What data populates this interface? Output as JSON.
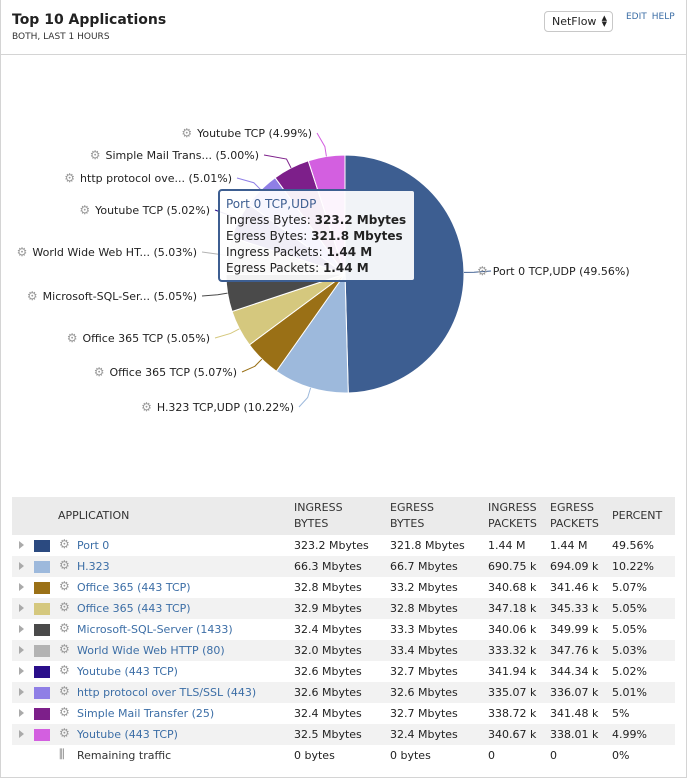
{
  "header": {
    "title": "Top 10 Applications",
    "subtitle": "BOTH, LAST 1 HOURS",
    "source_select": "NetFlow",
    "edit": "EDIT",
    "help": "HELP"
  },
  "chart_data": {
    "type": "pie",
    "slices": [
      {
        "label": "Port 0 TCP,UDP (49.56%)",
        "value": 49.56,
        "color": "#3d5e91"
      },
      {
        "label": "H.323 TCP,UDP (10.22%)",
        "value": 10.22,
        "color": "#9db9dc"
      },
      {
        "label": "Office 365 TCP (5.07%)",
        "value": 5.07,
        "color": "#9a7016"
      },
      {
        "label": "Office 365 TCP (5.05%)",
        "value": 5.05,
        "color": "#d5c87e"
      },
      {
        "label": "Microsoft-SQL-Ser... (5.05%)",
        "value": 5.05,
        "color": "#4a4a4a"
      },
      {
        "label": "World Wide Web HT... (5.03%)",
        "value": 5.03,
        "color": "#b3b3b3"
      },
      {
        "label": "Youtube TCP (5.02%)",
        "value": 5.02,
        "color": "#2a0e8a"
      },
      {
        "label": "http protocol ove... (5.01%)",
        "value": 5.01,
        "color": "#8f7fe6"
      },
      {
        "label": "Simple Mail Trans... (5.00%)",
        "value": 5.0,
        "color": "#7d1f8a"
      },
      {
        "label": "Youtube TCP (4.99%)",
        "value": 4.99,
        "color": "#d35fe0"
      }
    ],
    "tooltip": {
      "title": "Port 0 TCP,UDP",
      "lines": [
        {
          "k": "Ingress Bytes: ",
          "v": "323.2 Mbytes"
        },
        {
          "k": "Egress Bytes: ",
          "v": "321.8 Mbytes"
        },
        {
          "k": "Ingress Packets: ",
          "v": "1.44 M"
        },
        {
          "k": "Egress Packets: ",
          "v": "1.44 M"
        }
      ]
    }
  },
  "table": {
    "columns": [
      "APPLICATION",
      "INGRESS BYTES",
      "EGRESS BYTES",
      "INGRESS PACKETS",
      "EGRESS PACKETS",
      "PERCENT"
    ],
    "rows": [
      {
        "name": "Port 0",
        "color": "#2b4a80",
        "ib": "323.2 Mbytes",
        "eb": "321.8 Mbytes",
        "ip": "1.44 M",
        "ep": "1.44 M",
        "pct": "49.56%"
      },
      {
        "name": "H.323",
        "color": "#9db9dc",
        "ib": "66.3 Mbytes",
        "eb": "66.7 Mbytes",
        "ip": "690.75 k",
        "ep": "694.09 k",
        "pct": "10.22%"
      },
      {
        "name": "Office 365 (443 TCP)",
        "color": "#9a7016",
        "ib": "32.8 Mbytes",
        "eb": "33.2 Mbytes",
        "ip": "340.68 k",
        "ep": "341.46 k",
        "pct": "5.07%"
      },
      {
        "name": "Office 365 (443 TCP)",
        "color": "#d5c87e",
        "ib": "32.9 Mbytes",
        "eb": "32.8 Mbytes",
        "ip": "347.18 k",
        "ep": "345.33 k",
        "pct": "5.05%"
      },
      {
        "name": "Microsoft-SQL-Server (1433)",
        "color": "#4a4a4a",
        "ib": "32.4 Mbytes",
        "eb": "33.3 Mbytes",
        "ip": "340.06 k",
        "ep": "349.99 k",
        "pct": "5.05%"
      },
      {
        "name": "World Wide Web HTTP (80)",
        "color": "#b3b3b3",
        "ib": "32.0 Mbytes",
        "eb": "33.4 Mbytes",
        "ip": "333.32 k",
        "ep": "347.76 k",
        "pct": "5.03%"
      },
      {
        "name": "Youtube (443 TCP)",
        "color": "#2a0e8a",
        "ib": "32.6 Mbytes",
        "eb": "32.7 Mbytes",
        "ip": "341.94 k",
        "ep": "344.34 k",
        "pct": "5.02%"
      },
      {
        "name": "http protocol over TLS/SSL (443)",
        "color": "#8f7fe6",
        "ib": "32.6 Mbytes",
        "eb": "32.6 Mbytes",
        "ip": "335.07 k",
        "ep": "336.07 k",
        "pct": "5.01%"
      },
      {
        "name": "Simple Mail Transfer (25)",
        "color": "#7d1f8a",
        "ib": "32.4 Mbytes",
        "eb": "32.7 Mbytes",
        "ip": "338.72 k",
        "ep": "341.48 k",
        "pct": "5%"
      },
      {
        "name": "Youtube (443 TCP)",
        "color": "#d35fe0",
        "ib": "32.5 Mbytes",
        "eb": "32.4 Mbytes",
        "ip": "340.67 k",
        "ep": "338.01 k",
        "pct": "4.99%"
      }
    ],
    "remaining": {
      "name": "Remaining traffic",
      "ib": "0 bytes",
      "eb": "0 bytes",
      "ip": "0",
      "ep": "0",
      "pct": "0%"
    }
  }
}
